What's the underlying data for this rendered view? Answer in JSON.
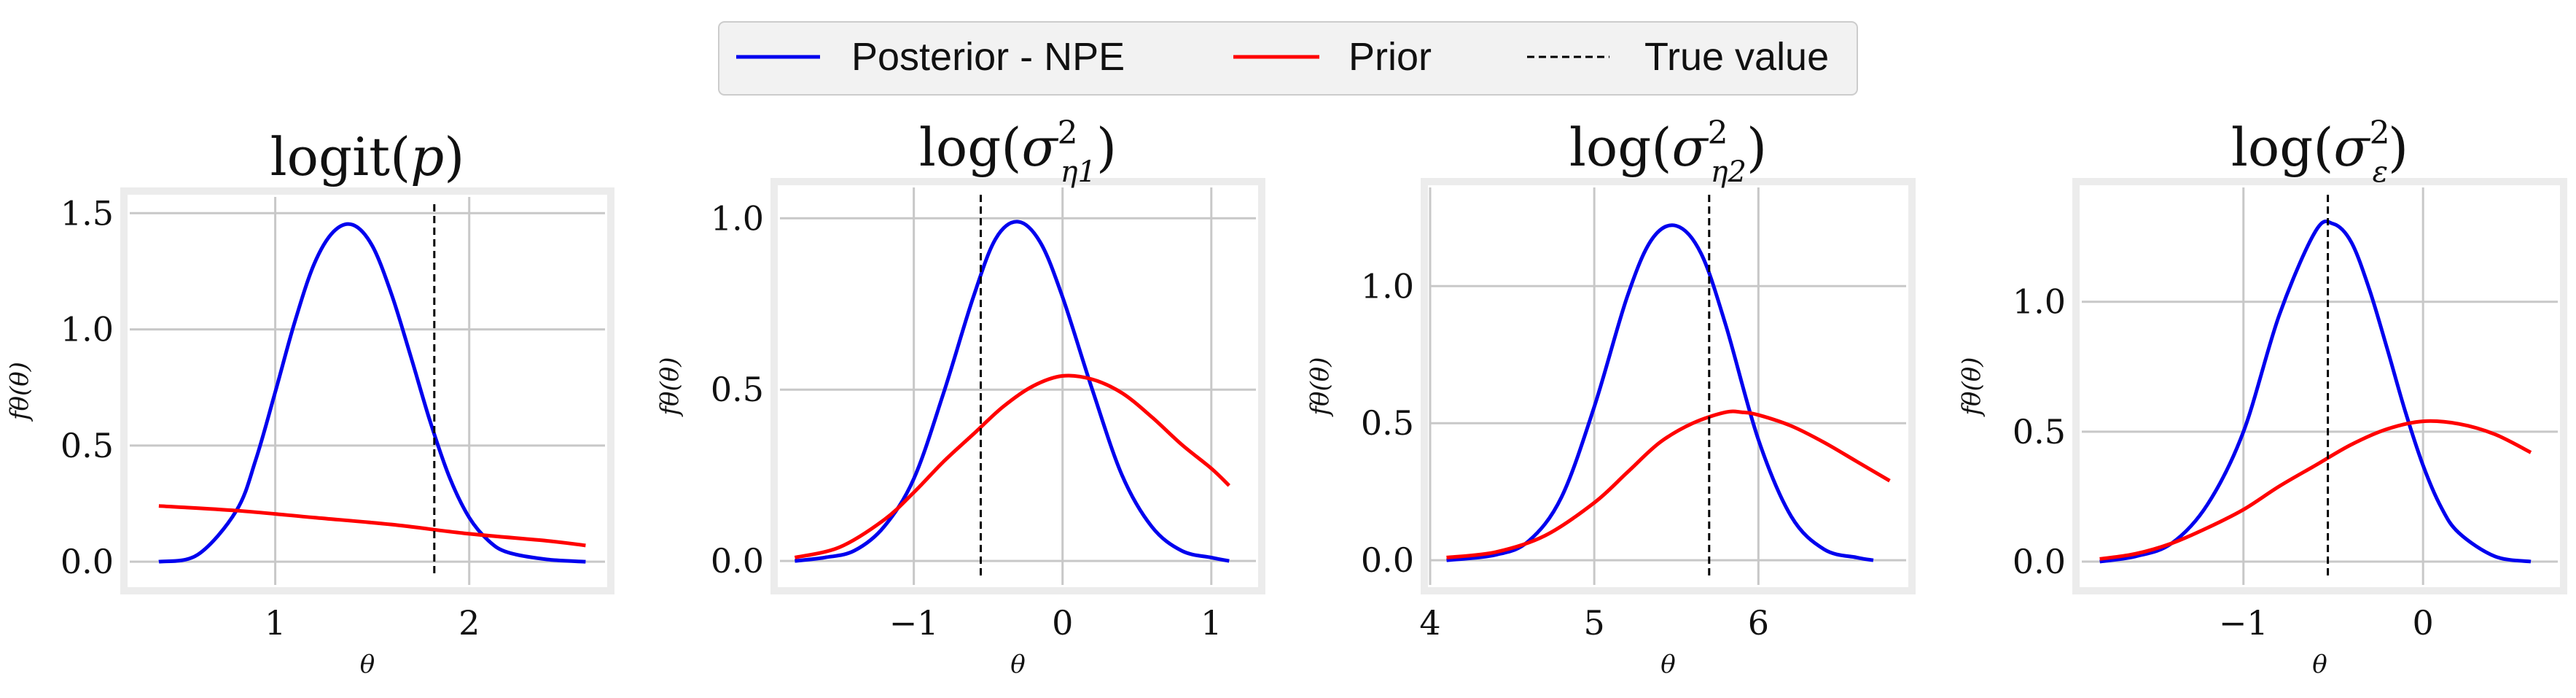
{
  "legend": {
    "entries": [
      {
        "label": "Posterior - NPE",
        "color": "#0000ee",
        "style": "solid"
      },
      {
        "label": "Prior",
        "color": "#ff0000",
        "style": "solid"
      },
      {
        "label": "True value",
        "color": "#000000",
        "style": "dashed"
      }
    ]
  },
  "chart_data": [
    {
      "type": "line",
      "title": "logit(p)",
      "xlabel": "θ",
      "ylabel": "fθ(θ)",
      "xlim": [
        0.25,
        2.7
      ],
      "ylim": [
        -0.1,
        1.57
      ],
      "xticks": [
        1,
        2
      ],
      "xtick_labels": [
        "1",
        "2"
      ],
      "yticks": [
        0.0,
        0.5,
        1.0,
        1.5
      ],
      "ytick_labels": [
        "0.0",
        "0.5",
        "1.0",
        "1.5"
      ],
      "grid": true,
      "true_value": 1.82,
      "series": [
        {
          "name": "Posterior - NPE",
          "x": [
            0.4,
            0.6,
            0.8,
            0.9,
            1.0,
            1.1,
            1.2,
            1.3,
            1.4,
            1.5,
            1.6,
            1.7,
            1.8,
            1.9,
            2.0,
            2.1,
            2.2,
            2.4,
            2.6
          ],
          "y": [
            0.0,
            0.03,
            0.22,
            0.44,
            0.73,
            1.03,
            1.28,
            1.42,
            1.45,
            1.36,
            1.15,
            0.88,
            0.6,
            0.36,
            0.19,
            0.09,
            0.04,
            0.01,
            0.0
          ]
        },
        {
          "name": "Prior",
          "x": [
            0.4,
            0.8,
            1.2,
            1.6,
            2.0,
            2.4,
            2.6
          ],
          "y": [
            0.24,
            0.22,
            0.19,
            0.16,
            0.12,
            0.09,
            0.07
          ]
        }
      ]
    },
    {
      "type": "line",
      "title": "log(σ²η1)",
      "xlabel": "θ",
      "ylabel": "fθ(θ)",
      "xlim": [
        -1.9,
        1.3
      ],
      "ylim": [
        -0.07,
        1.09
      ],
      "xticks": [
        -1,
        0,
        1
      ],
      "xtick_labels": [
        "−1",
        "0",
        "1"
      ],
      "yticks": [
        0.0,
        0.5,
        1.0
      ],
      "ytick_labels": [
        "0.0",
        "0.5",
        "1.0"
      ],
      "grid": true,
      "true_value": -0.55,
      "series": [
        {
          "name": "Posterior - NPE",
          "x": [
            -1.8,
            -1.6,
            -1.4,
            -1.2,
            -1.0,
            -0.8,
            -0.6,
            -0.45,
            -0.3,
            -0.15,
            0.0,
            0.2,
            0.4,
            0.6,
            0.8,
            1.0,
            1.12
          ],
          "y": [
            0.0,
            0.01,
            0.03,
            0.1,
            0.24,
            0.49,
            0.77,
            0.94,
            0.99,
            0.93,
            0.77,
            0.5,
            0.25,
            0.1,
            0.03,
            0.01,
            0.0
          ]
        },
        {
          "name": "Prior",
          "x": [
            -1.8,
            -1.5,
            -1.2,
            -1.0,
            -0.8,
            -0.6,
            -0.4,
            -0.2,
            0.0,
            0.2,
            0.4,
            0.6,
            0.8,
            1.0,
            1.12
          ],
          "y": [
            0.01,
            0.04,
            0.12,
            0.2,
            0.29,
            0.37,
            0.45,
            0.51,
            0.54,
            0.53,
            0.49,
            0.42,
            0.34,
            0.27,
            0.22
          ]
        }
      ]
    },
    {
      "type": "line",
      "title": "log(σ²η2)",
      "xlabel": "θ",
      "ylabel": "fθ(θ)",
      "xlim": [
        4.0,
        6.9
      ],
      "ylim": [
        -0.09,
        1.36
      ],
      "xticks": [
        4,
        5,
        6
      ],
      "xtick_labels": [
        "4",
        "5",
        "6"
      ],
      "yticks": [
        0.0,
        0.5,
        1.0
      ],
      "ytick_labels": [
        "0.0",
        "0.5",
        "1.0"
      ],
      "grid": true,
      "true_value": 5.7,
      "series": [
        {
          "name": "Posterior - NPE",
          "x": [
            4.1,
            4.4,
            4.6,
            4.8,
            5.0,
            5.2,
            5.35,
            5.5,
            5.65,
            5.8,
            6.0,
            6.2,
            6.4,
            6.6,
            6.7
          ],
          "y": [
            0.0,
            0.02,
            0.07,
            0.23,
            0.56,
            0.96,
            1.17,
            1.22,
            1.12,
            0.86,
            0.44,
            0.16,
            0.04,
            0.01,
            0.0
          ]
        },
        {
          "name": "Prior",
          "x": [
            4.1,
            4.4,
            4.7,
            5.0,
            5.2,
            5.4,
            5.6,
            5.8,
            5.9,
            6.0,
            6.2,
            6.4,
            6.6,
            6.8
          ],
          "y": [
            0.01,
            0.03,
            0.09,
            0.21,
            0.32,
            0.43,
            0.5,
            0.54,
            0.54,
            0.53,
            0.49,
            0.43,
            0.36,
            0.29
          ]
        }
      ]
    },
    {
      "type": "line",
      "title": "log(σ²ε)",
      "xlabel": "θ",
      "ylabel": "fθ(θ)",
      "xlim": [
        -1.9,
        0.75
      ],
      "ylim": [
        -0.09,
        1.44
      ],
      "xticks": [
        -1,
        0
      ],
      "xtick_labels": [
        "−1",
        "0"
      ],
      "yticks": [
        0.0,
        0.5,
        1.0
      ],
      "ytick_labels": [
        "0.0",
        "0.5",
        "1.0"
      ],
      "grid": true,
      "true_value": -0.53,
      "series": [
        {
          "name": "Posterior - NPE",
          "x": [
            -1.8,
            -1.6,
            -1.4,
            -1.2,
            -1.0,
            -0.8,
            -0.6,
            -0.5,
            -0.4,
            -0.3,
            -0.2,
            -0.1,
            0.0,
            0.1,
            0.2,
            0.4,
            0.6
          ],
          "y": [
            0.0,
            0.02,
            0.07,
            0.22,
            0.5,
            0.95,
            1.27,
            1.3,
            1.23,
            1.05,
            0.82,
            0.58,
            0.37,
            0.21,
            0.11,
            0.02,
            0.0
          ]
        },
        {
          "name": "Prior",
          "x": [
            -1.8,
            -1.6,
            -1.4,
            -1.2,
            -1.0,
            -0.8,
            -0.6,
            -0.4,
            -0.2,
            0.0,
            0.2,
            0.4,
            0.6
          ],
          "y": [
            0.01,
            0.03,
            0.07,
            0.13,
            0.2,
            0.29,
            0.37,
            0.45,
            0.51,
            0.54,
            0.53,
            0.49,
            0.42
          ]
        }
      ]
    }
  ]
}
